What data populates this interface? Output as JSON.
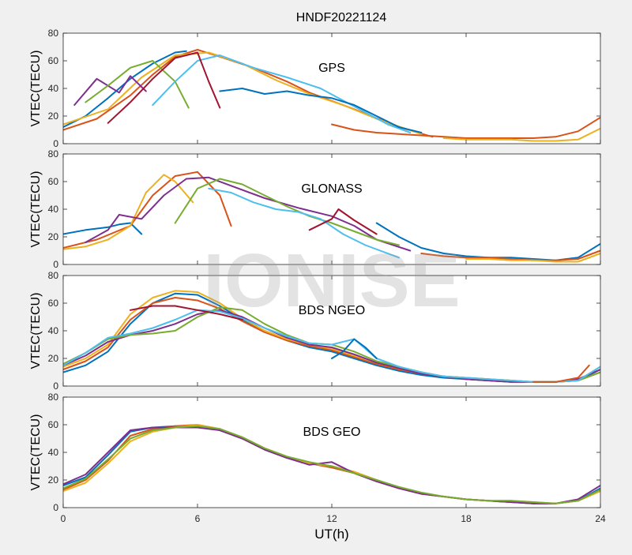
{
  "figure": {
    "title": "HNDF20221124",
    "xlabel": "UT(h)",
    "watermark": "IONISE"
  },
  "colors": [
    "#0072BD",
    "#D95319",
    "#EDB120",
    "#7E2F8E",
    "#77AC30",
    "#4DBEEE",
    "#A2142F"
  ],
  "chart_data": [
    {
      "type": "line",
      "label": "GPS",
      "ylabel": "VTEC(TECU)",
      "xlim": [
        0,
        24
      ],
      "ylim": [
        0,
        80
      ],
      "xticks": [
        0,
        6,
        12,
        18,
        24
      ],
      "yticks": [
        0,
        20,
        40,
        60,
        80
      ],
      "series": [
        {
          "x": [
            0,
            1,
            2,
            3,
            4,
            5,
            5.5
          ],
          "y": [
            12,
            20,
            33,
            47,
            58,
            66,
            67
          ]
        },
        {
          "x": [
            0,
            1.5,
            3,
            4,
            5,
            6,
            7,
            8.5,
            10,
            11,
            13,
            15,
            16.5
          ],
          "y": [
            10,
            18,
            35,
            50,
            63,
            68,
            63,
            55,
            45,
            37,
            25,
            12,
            5
          ]
        },
        {
          "x": [
            0,
            2,
            3.5,
            5,
            6.5,
            8,
            9.5,
            11,
            12.5,
            14,
            16
          ],
          "y": [
            14,
            25,
            48,
            64,
            66,
            58,
            46,
            36,
            28,
            18,
            7
          ]
        },
        {
          "x": [
            0.5,
            1.5,
            2.5,
            3,
            3.7
          ],
          "y": [
            28,
            47,
            37,
            49,
            38
          ]
        },
        {
          "x": [
            1,
            2,
            3,
            4,
            5,
            5.6
          ],
          "y": [
            30,
            42,
            55,
            60,
            45,
            26
          ]
        },
        {
          "x": [
            4,
            5,
            6,
            7,
            8.5,
            10,
            11.5,
            13,
            14.5,
            15.5
          ],
          "y": [
            28,
            45,
            60,
            64,
            55,
            48,
            40,
            27,
            14,
            8
          ]
        },
        {
          "x": [
            2,
            3,
            4,
            5,
            6,
            6.5,
            7
          ],
          "y": [
            15,
            30,
            47,
            62,
            66,
            45,
            26
          ]
        },
        {
          "x": [
            7,
            8,
            9,
            10,
            11,
            12,
            13,
            14,
            15,
            16
          ],
          "y": [
            38,
            40,
            36,
            38,
            35,
            33,
            28,
            20,
            12,
            8
          ]
        },
        {
          "x": [
            12,
            13,
            14,
            15,
            16,
            17,
            18,
            19,
            20,
            21,
            22,
            23,
            24
          ],
          "y": [
            14,
            10,
            8,
            7,
            6,
            5,
            4,
            4,
            4,
            4,
            5,
            9,
            19
          ]
        },
        {
          "x": [
            17,
            18,
            19,
            20,
            21,
            22,
            23,
            24
          ],
          "y": [
            4,
            3,
            3,
            3,
            2,
            2,
            3,
            11
          ]
        }
      ]
    },
    {
      "type": "line",
      "label": "GLONASS",
      "ylabel": "VTEC(TECU)",
      "xlim": [
        0,
        24
      ],
      "ylim": [
        0,
        80
      ],
      "xticks": [
        0,
        6,
        12,
        18,
        24
      ],
      "yticks": [
        0,
        20,
        40,
        60,
        80
      ],
      "series": [
        {
          "x": [
            0,
            1,
            2,
            2.5,
            3,
            3.5
          ],
          "y": [
            22,
            25,
            27,
            29,
            30,
            22
          ]
        },
        {
          "x": [
            0,
            1.5,
            3,
            4,
            5,
            6,
            7,
            7.5
          ],
          "y": [
            12,
            18,
            28,
            50,
            64,
            67,
            50,
            28
          ]
        },
        {
          "x": [
            0,
            1,
            2,
            3,
            3.7,
            4.5,
            5,
            5.8
          ],
          "y": [
            11,
            13,
            18,
            28,
            52,
            65,
            60,
            45
          ]
        },
        {
          "x": [
            1,
            2,
            2.5,
            3.5,
            4.5,
            5.5,
            6.5,
            7.5,
            9,
            10.5,
            12,
            13,
            14,
            15.5
          ],
          "y": [
            16,
            25,
            36,
            33,
            50,
            62,
            63,
            57,
            48,
            41,
            35,
            28,
            18,
            10
          ]
        },
        {
          "x": [
            5,
            6,
            7,
            8,
            9,
            10,
            11,
            12,
            13,
            14,
            15
          ],
          "y": [
            30,
            55,
            62,
            58,
            50,
            42,
            35,
            30,
            24,
            18,
            14
          ]
        },
        {
          "x": [
            6.5,
            7.5,
            8.5,
            9.5,
            10.5,
            11.5,
            12.5,
            13.5,
            15
          ],
          "y": [
            55,
            52,
            45,
            40,
            38,
            33,
            22,
            14,
            5
          ]
        },
        {
          "x": [
            11,
            12,
            12.3,
            13,
            14
          ],
          "y": [
            25,
            33,
            40,
            32,
            22
          ]
        },
        {
          "x": [
            14,
            15,
            16,
            17,
            18,
            19,
            20,
            21,
            22,
            23,
            24
          ],
          "y": [
            30,
            20,
            12,
            8,
            6,
            5,
            5,
            4,
            3,
            5,
            15
          ]
        },
        {
          "x": [
            16,
            17,
            18,
            19,
            20,
            21,
            22,
            23,
            24
          ],
          "y": [
            8,
            6,
            5,
            5,
            4,
            3,
            3,
            4,
            10
          ]
        },
        {
          "x": [
            18,
            19,
            20,
            21,
            22,
            23,
            24
          ],
          "y": [
            4,
            4,
            3,
            3,
            2,
            2,
            8
          ]
        }
      ]
    },
    {
      "type": "line",
      "label": "BDS NGEO",
      "ylabel": "VTEC(TECU)",
      "xlim": [
        0,
        24
      ],
      "ylim": [
        0,
        80
      ],
      "xticks": [
        0,
        6,
        12,
        18,
        24
      ],
      "yticks": [
        0,
        20,
        40,
        60,
        80
      ],
      "series": [
        {
          "x": [
            0,
            1,
            2,
            3,
            4,
            5,
            6,
            7,
            8,
            9,
            10,
            11,
            12,
            13,
            14,
            15,
            16,
            17,
            18,
            19,
            20,
            21,
            22,
            23,
            24
          ],
          "y": [
            10,
            15,
            25,
            45,
            60,
            67,
            66,
            58,
            48,
            40,
            33,
            28,
            25,
            20,
            15,
            11,
            8,
            6,
            5,
            4,
            3,
            3,
            3,
            4,
            12
          ]
        },
        {
          "x": [
            0,
            1,
            2,
            3,
            4,
            5,
            6,
            7,
            8,
            9,
            10,
            11,
            12,
            13,
            14,
            15,
            16,
            17,
            18,
            19,
            20,
            21,
            22,
            23,
            24
          ],
          "y": [
            12,
            18,
            28,
            48,
            60,
            64,
            62,
            56,
            47,
            39,
            33,
            29,
            26,
            21,
            16,
            12,
            9,
            7,
            5,
            4,
            3,
            3,
            3,
            4,
            10
          ]
        },
        {
          "x": [
            0,
            1,
            2,
            3,
            4,
            5,
            6,
            7,
            8,
            9,
            10,
            11,
            12,
            13,
            14,
            15,
            16,
            17,
            18,
            19,
            20,
            21,
            22,
            23,
            24
          ],
          "y": [
            14,
            20,
            30,
            52,
            64,
            69,
            68,
            60,
            49,
            40,
            34,
            30,
            27,
            22,
            17,
            13,
            10,
            7,
            6,
            5,
            4,
            3,
            3,
            4,
            14
          ]
        },
        {
          "x": [
            0,
            1,
            2,
            3,
            4,
            5,
            6,
            7,
            8,
            9,
            10,
            11,
            12,
            13,
            14,
            15,
            16,
            17,
            18,
            19,
            20,
            21,
            22,
            23,
            24
          ],
          "y": [
            15,
            22,
            32,
            37,
            40,
            45,
            52,
            55,
            50,
            42,
            35,
            30,
            28,
            23,
            17,
            13,
            9,
            7,
            5,
            4,
            3,
            3,
            3,
            5,
            12
          ]
        },
        {
          "x": [
            0,
            1,
            2,
            3,
            4,
            5,
            6,
            7,
            8,
            9,
            10,
            11,
            12,
            13,
            14,
            15,
            16,
            17,
            18,
            19,
            20,
            21,
            22,
            23,
            24
          ],
          "y": [
            16,
            24,
            34,
            37,
            38,
            40,
            50,
            57,
            55,
            45,
            37,
            31,
            30,
            25,
            18,
            14,
            10,
            7,
            6,
            5,
            4,
            3,
            3,
            4,
            10
          ]
        },
        {
          "x": [
            0,
            1,
            2,
            3,
            4,
            5,
            6,
            7,
            8,
            9,
            10,
            11,
            12,
            13,
            14,
            15,
            16,
            17,
            18,
            19,
            20,
            21,
            22,
            23,
            24
          ],
          "y": [
            15,
            24,
            35,
            38,
            42,
            48,
            55,
            54,
            49,
            42,
            36,
            31,
            30,
            34,
            20,
            14,
            10,
            7,
            6,
            5,
            4,
            3,
            3,
            4,
            14
          ]
        },
        {
          "x": [
            3,
            4,
            5,
            6,
            7,
            8
          ],
          "y": [
            55,
            58,
            58,
            55,
            52,
            48
          ]
        },
        {
          "x": [
            12,
            12.5,
            13,
            13.5,
            14
          ],
          "y": [
            20,
            25,
            34,
            28,
            20
          ]
        },
        {
          "x": [
            21,
            22,
            23,
            23.5
          ],
          "y": [
            3,
            3,
            6,
            15
          ]
        }
      ]
    },
    {
      "type": "line",
      "label": "BDS GEO",
      "ylabel": "VTEC(TECU)",
      "xlim": [
        0,
        24
      ],
      "ylim": [
        0,
        80
      ],
      "xticks": [
        0,
        6,
        12,
        18,
        24
      ],
      "yticks": [
        0,
        20,
        40,
        60,
        80
      ],
      "series": [
        {
          "x": [
            0,
            1,
            2,
            3,
            4,
            5,
            6,
            7,
            8,
            9,
            10,
            11,
            12,
            13,
            14,
            15,
            16,
            17,
            18,
            19,
            20,
            21,
            22,
            23,
            24
          ],
          "y": [
            16,
            22,
            38,
            55,
            58,
            59,
            59,
            56,
            50,
            42,
            36,
            32,
            30,
            25,
            20,
            14,
            10,
            8,
            6,
            5,
            4,
            3,
            3,
            5,
            14
          ]
        },
        {
          "x": [
            0,
            1,
            2,
            3,
            4,
            5,
            6,
            7,
            8,
            9,
            10,
            11,
            12,
            13,
            14,
            15,
            16,
            17,
            18,
            19,
            20,
            21,
            22,
            23,
            24
          ],
          "y": [
            13,
            20,
            34,
            52,
            57,
            59,
            60,
            57,
            50,
            42,
            36,
            32,
            29,
            25,
            19,
            14,
            10,
            8,
            6,
            5,
            4,
            3,
            3,
            5,
            12
          ]
        },
        {
          "x": [
            0,
            1,
            2,
            3,
            4,
            5,
            6,
            7,
            8,
            9,
            10,
            11,
            12,
            13,
            14,
            15,
            16,
            17,
            18,
            19,
            20,
            21,
            22,
            23,
            24
          ],
          "y": [
            12,
            18,
            32,
            48,
            55,
            58,
            60,
            57,
            51,
            43,
            37,
            32,
            30,
            26,
            20,
            14,
            10,
            8,
            6,
            5,
            5,
            4,
            3,
            5,
            12
          ]
        },
        {
          "x": [
            0,
            1,
            2,
            3,
            4,
            5,
            6,
            7,
            8,
            9,
            10,
            11,
            12,
            13,
            14,
            15,
            16,
            17,
            18,
            19,
            20,
            21,
            22,
            23,
            24
          ],
          "y": [
            17,
            24,
            40,
            56,
            58,
            58,
            58,
            56,
            50,
            42,
            36,
            31,
            33,
            25,
            19,
            14,
            10,
            8,
            6,
            5,
            4,
            3,
            3,
            6,
            16
          ]
        },
        {
          "x": [
            0,
            1,
            2,
            3,
            4,
            5,
            6,
            7,
            8,
            9,
            10,
            11,
            12,
            13,
            14,
            15,
            16,
            17,
            18,
            19,
            20,
            21,
            22,
            23,
            24
          ],
          "y": [
            14,
            21,
            35,
            50,
            56,
            58,
            59,
            57,
            51,
            43,
            37,
            33,
            30,
            25,
            20,
            15,
            11,
            8,
            6,
            5,
            5,
            4,
            3,
            5,
            13
          ]
        }
      ]
    }
  ]
}
